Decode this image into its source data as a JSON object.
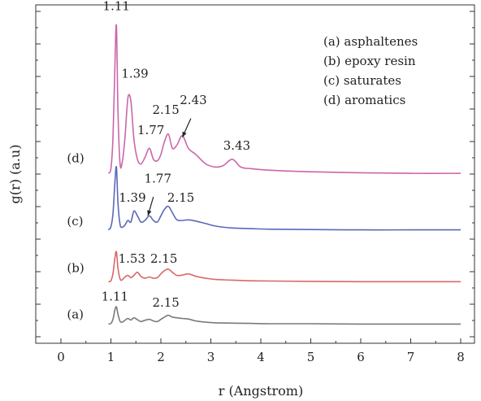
{
  "chart_data": {
    "type": "line",
    "title": "",
    "xlabel": "r (Angstrom)",
    "ylabel": "g(r) (a.u)",
    "xlim": [
      0,
      8
    ],
    "ylim": [
      0,
      10
    ],
    "xticks": [
      0,
      1,
      2,
      3,
      4,
      5,
      6,
      7,
      8
    ],
    "grid": false,
    "legend_position": "top-right",
    "legend": [
      "(a) asphaltenes",
      "(b) epoxy resin",
      "(c) saturates",
      "(d) aromatics"
    ],
    "series": [
      {
        "label": "(a)",
        "color": "#7a7a7a",
        "baseline": 0.3,
        "x": [
          0.95,
          1.0,
          1.04,
          1.08,
          1.11,
          1.14,
          1.18,
          1.22,
          1.28,
          1.34,
          1.4,
          1.46,
          1.53,
          1.6,
          1.68,
          1.77,
          1.85,
          1.93,
          2.0,
          2.07,
          2.15,
          2.23,
          2.32,
          2.43,
          2.55,
          2.7,
          2.9,
          3.1,
          3.43,
          3.8,
          4.2,
          5.0,
          6.0,
          7.0,
          8.0
        ],
        "y": [
          0.3,
          0.32,
          0.45,
          0.75,
          0.85,
          0.62,
          0.4,
          0.36,
          0.42,
          0.48,
          0.43,
          0.5,
          0.44,
          0.38,
          0.42,
          0.45,
          0.4,
          0.38,
          0.45,
          0.52,
          0.58,
          0.52,
          0.5,
          0.48,
          0.46,
          0.4,
          0.36,
          0.34,
          0.33,
          0.32,
          0.31,
          0.31,
          0.3,
          0.3,
          0.3
        ]
      },
      {
        "label": "(b)",
        "color": "#d86868",
        "baseline": 1.65,
        "x": [
          0.95,
          1.0,
          1.04,
          1.08,
          1.11,
          1.14,
          1.18,
          1.22,
          1.28,
          1.34,
          1.4,
          1.46,
          1.53,
          1.6,
          1.68,
          1.77,
          1.85,
          1.93,
          2.0,
          2.07,
          2.15,
          2.23,
          2.32,
          2.43,
          2.55,
          2.7,
          2.9,
          3.1,
          3.43,
          3.8,
          4.2,
          5.0,
          6.0,
          7.0,
          8.0
        ],
        "y": [
          1.65,
          1.68,
          1.9,
          2.4,
          2.6,
          2.1,
          1.75,
          1.7,
          1.8,
          1.85,
          1.78,
          1.85,
          1.95,
          1.82,
          1.76,
          1.8,
          1.76,
          1.78,
          1.9,
          2.0,
          2.05,
          1.95,
          1.85,
          1.86,
          1.9,
          1.82,
          1.76,
          1.72,
          1.7,
          1.68,
          1.67,
          1.66,
          1.65,
          1.65,
          1.65
        ]
      },
      {
        "label": "(c)",
        "color": "#5a69b8",
        "baseline": 3.3,
        "x": [
          0.95,
          1.0,
          1.04,
          1.08,
          1.11,
          1.14,
          1.18,
          1.22,
          1.28,
          1.34,
          1.4,
          1.46,
          1.53,
          1.6,
          1.68,
          1.77,
          1.85,
          1.93,
          2.0,
          2.07,
          2.15,
          2.23,
          2.32,
          2.43,
          2.55,
          2.7,
          2.9,
          3.1,
          3.43,
          3.8,
          4.2,
          5.0,
          6.0,
          7.0,
          8.0
        ],
        "y": [
          3.3,
          3.4,
          3.8,
          4.8,
          5.3,
          4.2,
          3.5,
          3.38,
          3.45,
          3.6,
          3.55,
          3.9,
          3.75,
          3.55,
          3.6,
          3.75,
          3.6,
          3.55,
          3.75,
          3.95,
          4.05,
          3.85,
          3.62,
          3.6,
          3.62,
          3.58,
          3.5,
          3.42,
          3.36,
          3.34,
          3.32,
          3.31,
          3.3,
          3.3,
          3.3
        ]
      },
      {
        "label": "(d)",
        "color": "#cc66aa",
        "baseline": 5.1,
        "x": [
          0.95,
          1.0,
          1.04,
          1.08,
          1.11,
          1.14,
          1.18,
          1.22,
          1.28,
          1.34,
          1.4,
          1.46,
          1.53,
          1.6,
          1.68,
          1.77,
          1.85,
          1.93,
          2.0,
          2.07,
          2.15,
          2.23,
          2.32,
          2.43,
          2.55,
          2.7,
          2.9,
          3.1,
          3.25,
          3.43,
          3.6,
          3.8,
          4.2,
          5.0,
          6.0,
          7.0,
          8.0
        ],
        "y": [
          5.1,
          5.25,
          6.2,
          8.5,
          9.8,
          7.2,
          5.45,
          5.4,
          6.2,
          7.5,
          7.4,
          6.2,
          5.55,
          5.4,
          5.6,
          5.9,
          5.55,
          5.5,
          5.7,
          6.1,
          6.35,
          5.9,
          6.0,
          6.3,
          5.9,
          5.7,
          5.4,
          5.3,
          5.35,
          5.55,
          5.3,
          5.25,
          5.2,
          5.15,
          5.12,
          5.1,
          5.1
        ]
      }
    ],
    "annotations": [
      {
        "text": "1.11",
        "x": 1.11,
        "y": 10.3
      },
      {
        "text": "1.39",
        "x": 1.48,
        "y": 8.15
      },
      {
        "text": "1.77",
        "x": 1.8,
        "y": 6.35
      },
      {
        "text": "2.15",
        "x": 2.1,
        "y": 7.0
      },
      {
        "text": "2.43",
        "x": 2.65,
        "y": 7.3
      },
      {
        "text": "3.43",
        "x": 3.52,
        "y": 5.85
      },
      {
        "text": "1.39",
        "x": 1.43,
        "y": 4.2
      },
      {
        "text": "1.77",
        "x": 1.94,
        "y": 4.8
      },
      {
        "text": "2.15",
        "x": 2.4,
        "y": 4.2
      },
      {
        "text": "1.53",
        "x": 1.42,
        "y": 2.25
      },
      {
        "text": "2.15",
        "x": 2.06,
        "y": 2.25
      },
      {
        "text": "1.11",
        "x": 1.08,
        "y": 1.05
      },
      {
        "text": "2.15",
        "x": 2.1,
        "y": 0.85
      }
    ],
    "arrows": [
      {
        "from": [
          2.6,
          6.85
        ],
        "to": [
          2.43,
          6.25
        ]
      },
      {
        "from": [
          1.85,
          4.35
        ],
        "to": [
          1.74,
          3.75
        ]
      }
    ],
    "curve_labels": [
      {
        "text": "(d)",
        "x": 0.12,
        "y": 5.45
      },
      {
        "text": "(c)",
        "x": 0.12,
        "y": 3.45
      },
      {
        "text": "(b)",
        "x": 0.12,
        "y": 1.95
      },
      {
        "text": "(a)",
        "x": 0.12,
        "y": 0.48
      }
    ]
  }
}
